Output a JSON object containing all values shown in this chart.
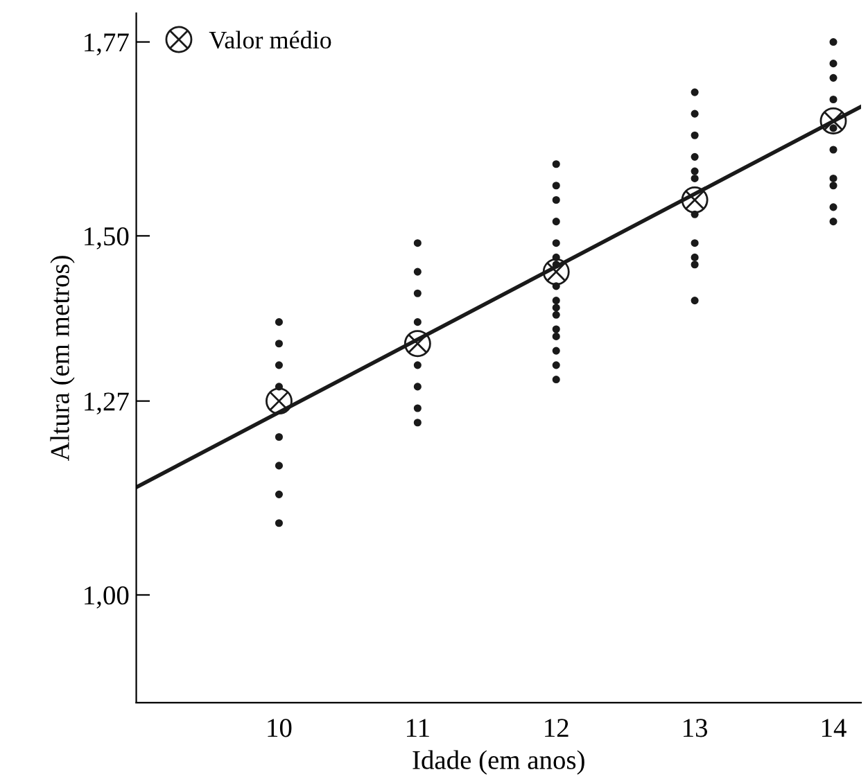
{
  "chart_data": {
    "type": "scatter",
    "xlabel": "Idade (em anos)",
    "ylabel": "Altura (em metros)",
    "xlim": [
      8.97,
      14.2
    ],
    "ylim": [
      0.85,
      1.81
    ],
    "xticks": [
      10,
      11,
      12,
      13,
      14
    ],
    "yticks": [
      {
        "value": 1.0,
        "label": "1,00"
      },
      {
        "value": 1.27,
        "label": "1,27"
      },
      {
        "value": 1.5,
        "label": "1,50"
      },
      {
        "value": 1.77,
        "label": "1,77"
      }
    ],
    "grid": false,
    "legend": "top left",
    "series": [
      {
        "marker": "circle",
        "color": "#1a1a1a",
        "x": [
          10,
          10,
          10,
          10,
          10,
          10,
          10,
          10,
          11,
          11,
          11,
          11,
          11,
          11,
          11,
          11,
          12,
          12,
          12,
          12,
          12,
          12,
          12,
          12,
          12,
          12,
          12,
          12,
          12,
          12,
          12,
          12,
          13,
          13,
          13,
          13,
          13,
          13,
          13,
          13,
          13,
          13,
          13,
          14,
          14,
          14,
          14,
          14,
          14,
          14,
          14,
          14,
          14
        ],
        "values": [
          1.38,
          1.35,
          1.32,
          1.29,
          1.22,
          1.18,
          1.14,
          1.1,
          1.49,
          1.45,
          1.42,
          1.38,
          1.32,
          1.29,
          1.26,
          1.24,
          1.6,
          1.57,
          1.55,
          1.52,
          1.49,
          1.47,
          1.46,
          1.43,
          1.41,
          1.4,
          1.39,
          1.37,
          1.36,
          1.34,
          1.32,
          1.3,
          1.7,
          1.67,
          1.64,
          1.61,
          1.59,
          1.58,
          1.53,
          1.49,
          1.47,
          1.46,
          1.41,
          1.77,
          1.74,
          1.72,
          1.69,
          1.65,
          1.62,
          1.58,
          1.57,
          1.54,
          1.52
        ]
      },
      {
        "type": "line",
        "marker": "none",
        "color": "#1a1a1a",
        "x": [
          8.97,
          14.2
        ],
        "values": [
          1.15,
          1.68
        ]
      },
      {
        "marker": "cross",
        "name": "Valor médio",
        "color": "#1a1a1a",
        "x": [
          10,
          11,
          12,
          13,
          14
        ],
        "values": [
          1.27,
          1.35,
          1.45,
          1.55,
          1.66
        ]
      }
    ]
  }
}
